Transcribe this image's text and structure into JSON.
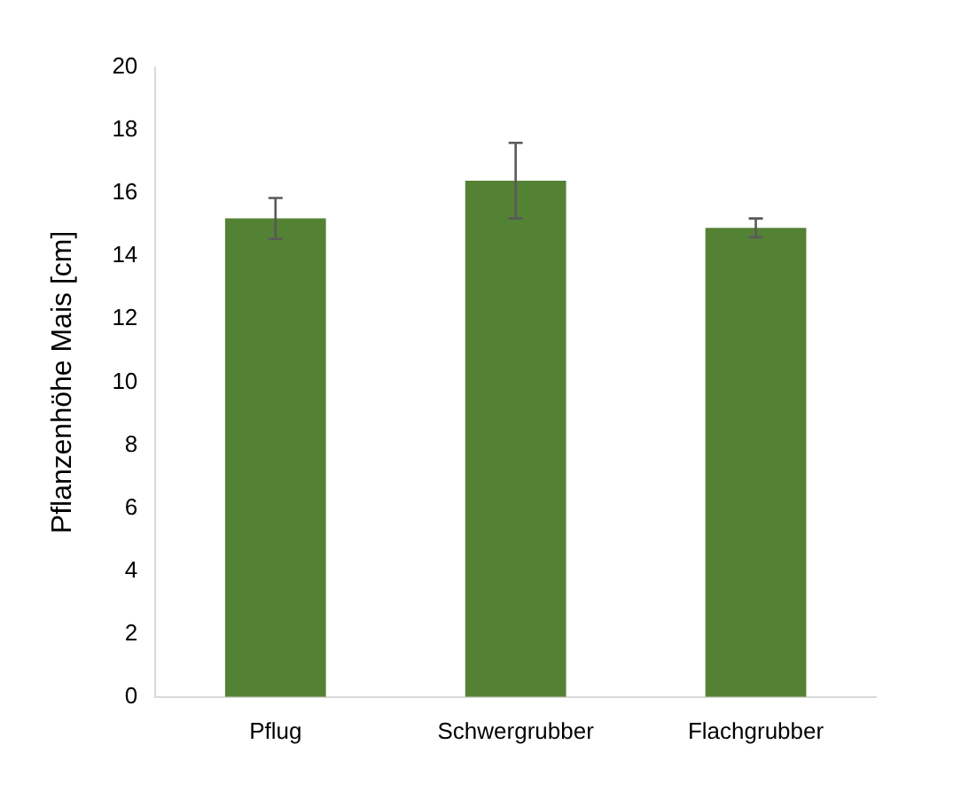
{
  "chart_data": {
    "type": "bar",
    "ylabel": "Pflanzenhöhe Mais [cm]",
    "categories": [
      "Pflug",
      "Schwergrubber",
      "Flachgrubber"
    ],
    "values": [
      15.2,
      16.4,
      14.9
    ],
    "errors": [
      0.65,
      1.2,
      0.3
    ],
    "color": "#548235",
    "ylim": [
      0,
      20
    ],
    "yticks": [
      0,
      2,
      4,
      6,
      8,
      10,
      12,
      14,
      16,
      18,
      20
    ],
    "grid": false,
    "legend": false
  }
}
